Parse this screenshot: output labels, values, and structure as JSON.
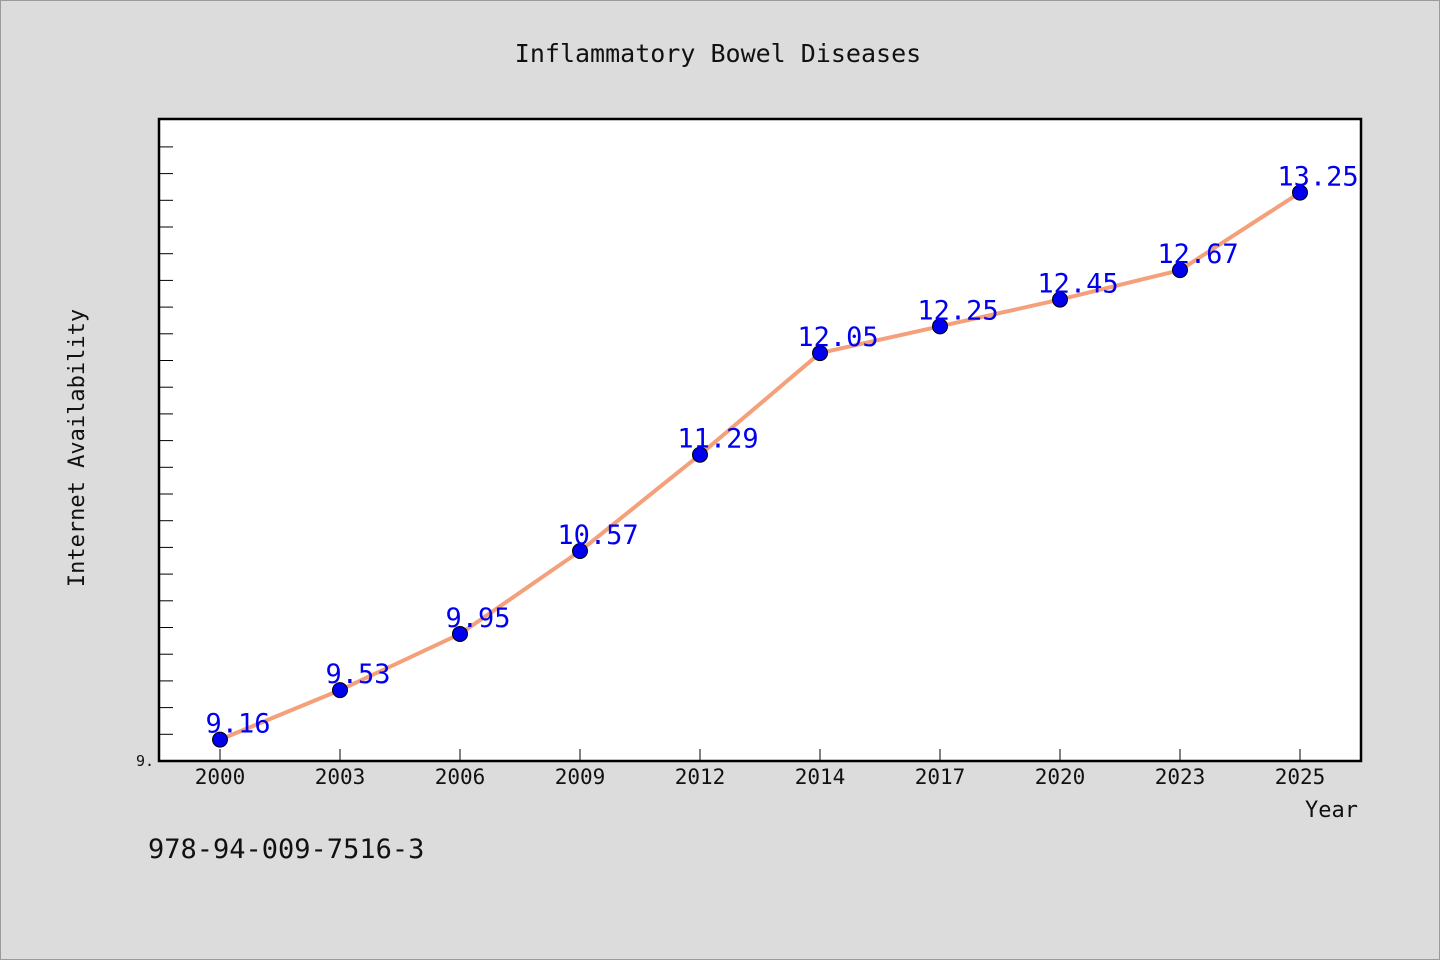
{
  "chart_data": {
    "type": "line",
    "title": "Inflammatory Bowel Diseases",
    "xlabel": "Year",
    "ylabel": "Internet Availability",
    "categories": [
      "2000",
      "2003",
      "2006",
      "2009",
      "2012",
      "2014",
      "2017",
      "2020",
      "2023",
      "2025"
    ],
    "series": [
      {
        "values": [
          9.16,
          9.53,
          9.95,
          10.57,
          11.29,
          12.05,
          12.25,
          12.45,
          12.67,
          13.25
        ],
        "line_color": "#f4a07a",
        "marker_color": "#0000ee",
        "label_color": "#0000ee"
      }
    ],
    "ylim": [
      9.0,
      13.8
    ],
    "ytick_label": "9.",
    "grid": false,
    "legend": "none"
  },
  "footer": {
    "isbn": "978-94-009-7516-3"
  }
}
